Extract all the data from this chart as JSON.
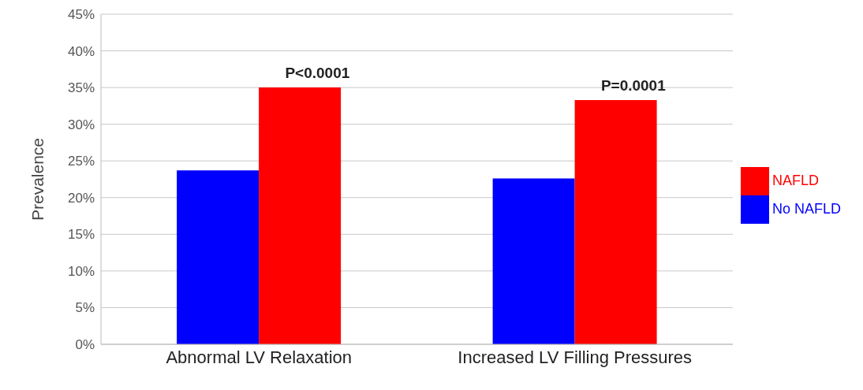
{
  "chart_data": {
    "type": "bar",
    "ylabel": "Prevalence",
    "categories": [
      "Abnormal LV Relaxation",
      "Increased LV Filling Pressures"
    ],
    "series": [
      {
        "name": "No NAFLD",
        "color": "#0000ff",
        "values": [
          23.7,
          22.6
        ]
      },
      {
        "name": "NAFLD",
        "color": "#ff0000",
        "values": [
          35.0,
          33.3
        ]
      }
    ],
    "ylim": [
      0,
      45
    ],
    "yticks": [
      {
        "value": 0,
        "label": "0%"
      },
      {
        "value": 5,
        "label": "5%"
      },
      {
        "value": 10,
        "label": "10%"
      },
      {
        "value": 15,
        "label": "15%"
      },
      {
        "value": 20,
        "label": "20%"
      },
      {
        "value": 25,
        "label": "25%"
      },
      {
        "value": 30,
        "label": "30%"
      },
      {
        "value": 35,
        "label": "35%"
      },
      {
        "value": 40,
        "label": "40%"
      },
      {
        "value": 45,
        "label": "45%"
      }
    ],
    "grid": "y",
    "legend": "right",
    "annotations": [
      {
        "text": "P<0.0001",
        "x": "Abnormal LV Relaxation",
        "y": 35.0
      },
      {
        "text": "P=0.0001",
        "x": "Increased LV Filling Pressures",
        "y": 33.3
      }
    ]
  }
}
